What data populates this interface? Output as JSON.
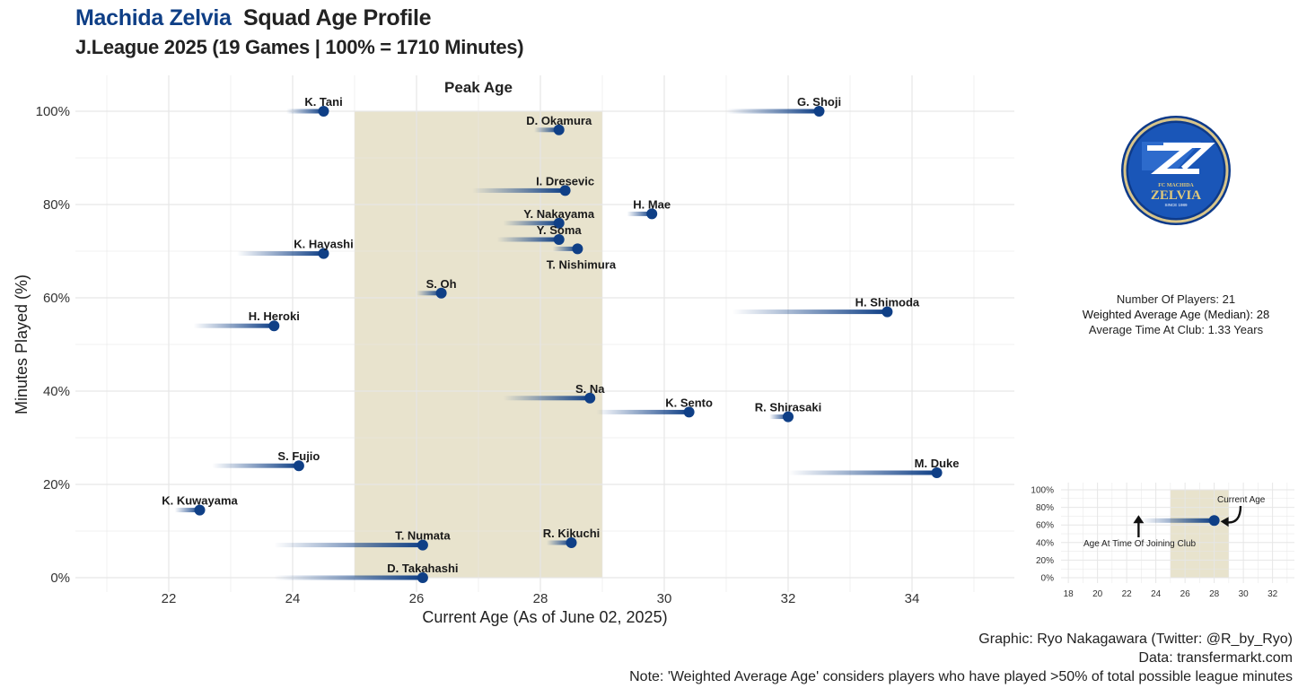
{
  "header": {
    "club": "Machida Zelvia",
    "title": "Squad Age Profile",
    "subtitle": "J.League 2025 (19 Games | 100% = 1710 Minutes)"
  },
  "chart_data": {
    "type": "scatter",
    "xlabel": "Current Age (As of June 02, 2025)",
    "ylabel": "Minutes Played (%)",
    "xlim": [
      20.5,
      35.5
    ],
    "ylim": [
      0,
      100
    ],
    "x_ticks": [
      22,
      24,
      26,
      28,
      30,
      32,
      34
    ],
    "y_ticks": [
      "0%",
      "20%",
      "40%",
      "60%",
      "80%",
      "100%"
    ],
    "grid": true,
    "peak_age": {
      "label": "Peak Age",
      "from": 25,
      "to": 29
    },
    "points": [
      {
        "name": "K. Tani",
        "age": 24.5,
        "joined_age": 23.9,
        "minutes_pct": 100
      },
      {
        "name": "G. Shoji",
        "age": 32.5,
        "joined_age": 31.0,
        "minutes_pct": 100
      },
      {
        "name": "D. Okamura",
        "age": 28.3,
        "joined_age": 27.9,
        "minutes_pct": 96
      },
      {
        "name": "I. Dresevic",
        "age": 28.4,
        "joined_age": 26.9,
        "minutes_pct": 83
      },
      {
        "name": "H. Mae",
        "age": 29.8,
        "joined_age": 29.4,
        "minutes_pct": 78
      },
      {
        "name": "Y. Nakayama",
        "age": 28.3,
        "joined_age": 27.4,
        "minutes_pct": 76
      },
      {
        "name": "Y. Soma",
        "age": 28.3,
        "joined_age": 27.3,
        "minutes_pct": 72.5
      },
      {
        "name": "T. Nishimura",
        "age": 28.6,
        "joined_age": 28.2,
        "minutes_pct": 70.5
      },
      {
        "name": "K. Hayashi",
        "age": 24.5,
        "joined_age": 23.1,
        "minutes_pct": 69.5
      },
      {
        "name": "S. Oh",
        "age": 26.4,
        "joined_age": 26.0,
        "minutes_pct": 61
      },
      {
        "name": "H. Shimoda",
        "age": 33.6,
        "joined_age": 31.1,
        "minutes_pct": 57
      },
      {
        "name": "H. Heroki",
        "age": 23.7,
        "joined_age": 22.4,
        "minutes_pct": 54
      },
      {
        "name": "S. Na",
        "age": 28.8,
        "joined_age": 27.4,
        "minutes_pct": 38.5
      },
      {
        "name": "K. Sento",
        "age": 30.4,
        "joined_age": 28.9,
        "minutes_pct": 35.5
      },
      {
        "name": "R. Shirasaki",
        "age": 32.0,
        "joined_age": 31.7,
        "minutes_pct": 34.5
      },
      {
        "name": "S. Fujio",
        "age": 24.1,
        "joined_age": 22.7,
        "minutes_pct": 24
      },
      {
        "name": "M. Duke",
        "age": 34.4,
        "joined_age": 32.0,
        "minutes_pct": 22.5
      },
      {
        "name": "K. Kuwayama",
        "age": 22.5,
        "joined_age": 22.1,
        "minutes_pct": 14.5
      },
      {
        "name": "T. Numata",
        "age": 26.1,
        "joined_age": 23.7,
        "minutes_pct": 7
      },
      {
        "name": "R. Kikuchi",
        "age": 28.5,
        "joined_age": 28.1,
        "minutes_pct": 7.5
      },
      {
        "name": "D. Takahashi",
        "age": 26.1,
        "joined_age": 23.7,
        "minutes_pct": 0
      }
    ],
    "colors": {
      "point": "#0f3f86",
      "peak_band": "#e8e3cd",
      "grid": "#e6e6e6"
    }
  },
  "stats": {
    "players": "Number Of Players: 21",
    "weighted_avg": "Weighted Average Age (Median): 28",
    "avg_time": "Average Time At Club: 1.33 Years"
  },
  "legend_chart": {
    "x_ticks": [
      18,
      20,
      22,
      24,
      26,
      28,
      30,
      32
    ],
    "y_ticks": [
      "0%",
      "20%",
      "40%",
      "60%",
      "80%",
      "100%"
    ],
    "xlim": [
      17.5,
      33.5
    ],
    "peak_from": 25,
    "peak_to": 29,
    "example": {
      "age": 28,
      "joined_age": 23,
      "minutes_pct": 65
    },
    "current_age_note": "Current Age",
    "joined_note": "Age At Time Of Joining Club"
  },
  "logo": {
    "top_text": "FC MACHIDA",
    "main_text": "ZELVIA",
    "bottom_text": "SINCE 1989"
  },
  "footer": {
    "credit": "Graphic: Ryo Nakagawara (Twitter: @R_by_Ryo)",
    "source": "Data: transfermarkt.com",
    "note": "Note: 'Weighted Average Age' considers players who have played >50% of total possible league minutes"
  }
}
